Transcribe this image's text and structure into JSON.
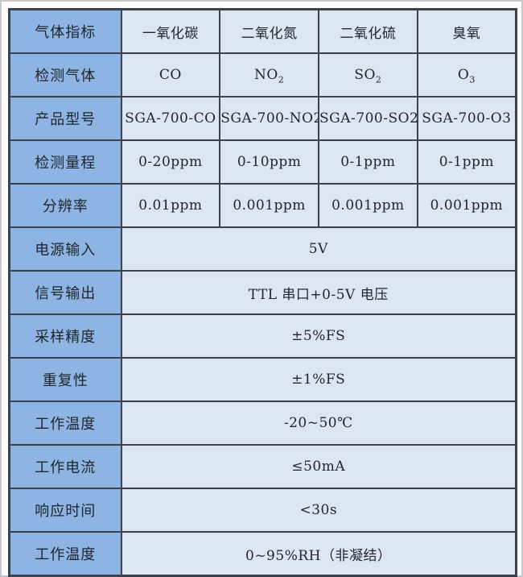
{
  "table": {
    "colors": {
      "label_bg": "#8db4e2",
      "cell_bg": "#dce6f1",
      "border": "#3a424d",
      "text": "#20262e"
    },
    "header": {
      "label": "气体指标",
      "columns": [
        "一氧化碳",
        "二氧化氮",
        "二氧化硫",
        "臭氧"
      ]
    },
    "detected_gas": {
      "label": "检测气体",
      "formulas": [
        {
          "base": "CO",
          "sub": ""
        },
        {
          "base": "NO",
          "sub": "2"
        },
        {
          "base": "SO",
          "sub": "2"
        },
        {
          "base": "O",
          "sub": "3"
        }
      ]
    },
    "product_model": {
      "label": "产品型号",
      "values": [
        "SGA-700-CO",
        "SGA-700-NO2",
        "SGA-700-SO2",
        "SGA-700-O3"
      ]
    },
    "detection_range": {
      "label": "检测量程",
      "values": [
        "0-20ppm",
        "0-10ppm",
        "0-1ppm",
        "0-1ppm"
      ]
    },
    "resolution": {
      "label": "分辨率",
      "values": [
        "0.01ppm",
        "0.001ppm",
        "0.001ppm",
        "0.001ppm"
      ]
    },
    "power_input": {
      "label": "电源输入",
      "value": "5V"
    },
    "signal_output": {
      "label": "信号输出",
      "value": "TTL 串口+0-5V 电压"
    },
    "sampling_accuracy": {
      "label": "采样精度",
      "value": "±5%FS"
    },
    "repeatability": {
      "label": "重复性",
      "value": "±1%FS"
    },
    "working_temperature": {
      "label": "工作温度",
      "value": "-20~50℃"
    },
    "working_current": {
      "label": "工作电流",
      "value": "≤50mA"
    },
    "response_time": {
      "label": "响应时间",
      "value": "<30s"
    },
    "working_humidity": {
      "label": "工作温度",
      "value": "0~95%RH（非凝结）"
    }
  }
}
